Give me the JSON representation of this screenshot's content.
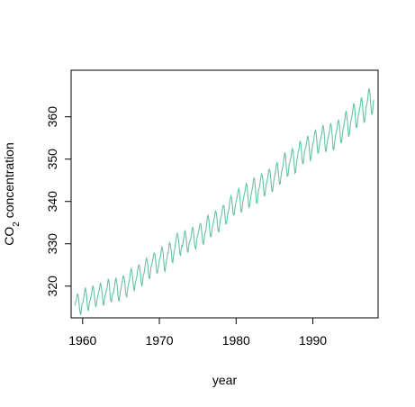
{
  "chart_data": {
    "type": "line",
    "title": "",
    "xlabel": "year",
    "ylabel_main": "CO",
    "ylabel_sub": "2",
    "ylabel_rest": " concentration",
    "xlim": [
      1958.5,
      1998.5
    ],
    "ylim": [
      312.5,
      371.0
    ],
    "xticks": [
      {
        "value": 1960,
        "label": "1960"
      },
      {
        "value": 1970,
        "label": "1970"
      },
      {
        "value": 1980,
        "label": "1980"
      },
      {
        "value": 1990,
        "label": "1990"
      }
    ],
    "yticks": [
      {
        "value": 320,
        "label": "320"
      },
      {
        "value": 330,
        "label": "330"
      },
      {
        "value": 340,
        "label": "340"
      },
      {
        "value": 350,
        "label": "350"
      },
      {
        "value": 360,
        "label": "360"
      }
    ],
    "grid": false,
    "series": [
      {
        "color": "#66c2a5",
        "x_start": 1959.0,
        "x_step": 0.0833333,
        "values": [
          315.4,
          316.3,
          316.5,
          317.6,
          318.1,
          317.9,
          316.8,
          314.8,
          313.8,
          313.2,
          314.6,
          315.6,
          316.0,
          316.5,
          317.5,
          318.6,
          319.7,
          319.1,
          318.0,
          316.1,
          314.8,
          314.1,
          315.5,
          316.4,
          316.7,
          317.5,
          318.2,
          319.2,
          320.1,
          319.6,
          318.3,
          316.6,
          315.5,
          315.1,
          316.2,
          317.2,
          317.9,
          318.5,
          318.9,
          320.2,
          320.8,
          319.9,
          319.0,
          317.4,
          315.8,
          315.4,
          316.7,
          317.6,
          318.1,
          319.0,
          319.4,
          320.5,
          321.6,
          321.3,
          319.9,
          317.6,
          316.6,
          316.2,
          317.4,
          318.3,
          318.3,
          319.1,
          319.9,
          321.2,
          322.0,
          321.3,
          320.2,
          318.2,
          316.9,
          316.4,
          317.6,
          318.7,
          319.3,
          320.4,
          321.0,
          322.2,
          322.4,
          321.9,
          320.8,
          318.8,
          317.8,
          317.5,
          318.8,
          319.9,
          320.5,
          321.2,
          322.3,
          323.6,
          324.1,
          323.6,
          322.3,
          320.8,
          319.3,
          319.0,
          320.4,
          321.2,
          321.6,
          322.4,
          323.7,
          324.6,
          325.0,
          324.7,
          323.3,
          321.8,
          320.3,
          320.1,
          321.4,
          322.6,
          322.9,
          324.0,
          325.1,
          326.2,
          326.6,
          325.9,
          325.0,
          323.0,
          321.9,
          321.8,
          323.3,
          324.6,
          325.0,
          325.7,
          326.5,
          327.5,
          327.8,
          327.5,
          326.3,
          324.7,
          323.1,
          323.1,
          324.0,
          325.1,
          326.1,
          326.6,
          327.2,
          328.5,
          329.2,
          328.7,
          327.5,
          325.6,
          323.8,
          323.5,
          324.9,
          325.9,
          326.6,
          327.8,
          327.8,
          329.6,
          330.3,
          329.9,
          328.9,
          327.6,
          325.7,
          325.6,
          327.0,
          328.2,
          328.6,
          329.9,
          330.9,
          332.0,
          332.5,
          332.0,
          330.9,
          329.3,
          327.6,
          327.3,
          328.6,
          329.6,
          329.4,
          330.1,
          331.3,
          332.3,
          333.2,
          332.6,
          331.2,
          329.4,
          327.9,
          328.3,
          329.5,
          330.5,
          330.6,
          331.2,
          332.0,
          333.3,
          333.9,
          333.4,
          331.9,
          330.0,
          329.1,
          328.8,
          330.2,
          331.5,
          331.9,
          332.8,
          333.3,
          334.4,
          334.8,
          334.6,
          333.1,
          331.4,
          330.1,
          329.9,
          331.0,
          332.3,
          332.8,
          333.4,
          334.8,
          336.3,
          336.7,
          336.0,
          334.8,
          332.9,
          331.7,
          331.7,
          332.9,
          334.1,
          334.6,
          335.3,
          336.2,
          337.3,
          337.7,
          337.3,
          336.2,
          334.1,
          332.9,
          332.8,
          334.2,
          335.4,
          336.1,
          336.6,
          337.7,
          338.5,
          339.1,
          339.0,
          337.7,
          335.8,
          334.7,
          334.8,
          336.0,
          337.1,
          337.8,
          338.2,
          339.9,
          340.6,
          341.3,
          340.8,
          339.3,
          337.5,
          336.8,
          336.9,
          338.0,
          339.3,
          339.9,
          340.6,
          341.3,
          342.5,
          343.0,
          342.5,
          340.8,
          338.6,
          337.5,
          337.6,
          339.2,
          340.4,
          341.0,
          341.8,
          342.5,
          343.6,
          344.2,
          343.9,
          342.1,
          340.1,
          338.5,
          338.9,
          340.0,
          341.2,
          342.1,
          342.8,
          343.4,
          345.0,
          345.5,
          345.0,
          343.3,
          341.1,
          339.6,
          339.7,
          341.2,
          342.6,
          343.1,
          343.7,
          345.2,
          345.9,
          346.5,
          346.0,
          344.8,
          343.0,
          341.4,
          341.4,
          342.8,
          344.1,
          344.5,
          345.3,
          346.0,
          347.4,
          347.6,
          347.2,
          345.6,
          343.8,
          342.4,
          342.4,
          343.7,
          345.0,
          345.8,
          346.4,
          347.6,
          348.7,
          349.3,
          348.6,
          347.0,
          345.3,
          344.1,
          344.2,
          345.7,
          346.9,
          347.6,
          348.2,
          349.3,
          350.4,
          351.6,
          351.0,
          349.4,
          347.3,
          346.0,
          346.0,
          347.4,
          348.8,
          349.3,
          350.0,
          350.6,
          351.8,
          352.5,
          352.1,
          350.4,
          348.3,
          346.7,
          346.9,
          348.3,
          349.8,
          350.5,
          351.7,
          352.0,
          353.4,
          354.3,
          353.7,
          352.2,
          350.2,
          348.9,
          349.0,
          350.5,
          351.8,
          352.4,
          352.8,
          353.8,
          354.8,
          355.5,
          354.9,
          353.4,
          351.4,
          349.7,
          350.0,
          351.4,
          352.7,
          353.7,
          354.1,
          355.3,
          356.2,
          357.0,
          356.3,
          354.8,
          352.6,
          351.4,
          351.6,
          353.0,
          354.1,
          354.6,
          355.3,
          355.9,
          357.4,
          357.9,
          357.2,
          355.5,
          353.2,
          351.7,
          352.1,
          353.4,
          354.6,
          355.2,
          355.9,
          356.6,
          357.8,
          358.5,
          357.7,
          356.0,
          353.8,
          352.2,
          352.4,
          353.9,
          355.1,
          356.0,
          356.6,
          357.5,
          358.6,
          359.3,
          358.6,
          357.2,
          355.2,
          353.9,
          354.0,
          355.6,
          357.0,
          357.5,
          358.4,
          359.2,
          360.6,
          361.4,
          360.5,
          359.0,
          357.0,
          355.3,
          355.8,
          357.3,
          358.6,
          359.4,
          360.0,
          361.0,
          362.2,
          363.2,
          362.6,
          360.8,
          358.8,
          357.5,
          357.5,
          359.0,
          360.3,
          361.0,
          361.8,
          362.5,
          363.8,
          364.6,
          363.8,
          362.0,
          360.1,
          358.6,
          359.0,
          360.5,
          362.0,
          362.9,
          363.4,
          364.5,
          366.0,
          366.7,
          365.9,
          364.1,
          362.0,
          360.6,
          360.7,
          362.3,
          364.0
        ]
      }
    ]
  }
}
